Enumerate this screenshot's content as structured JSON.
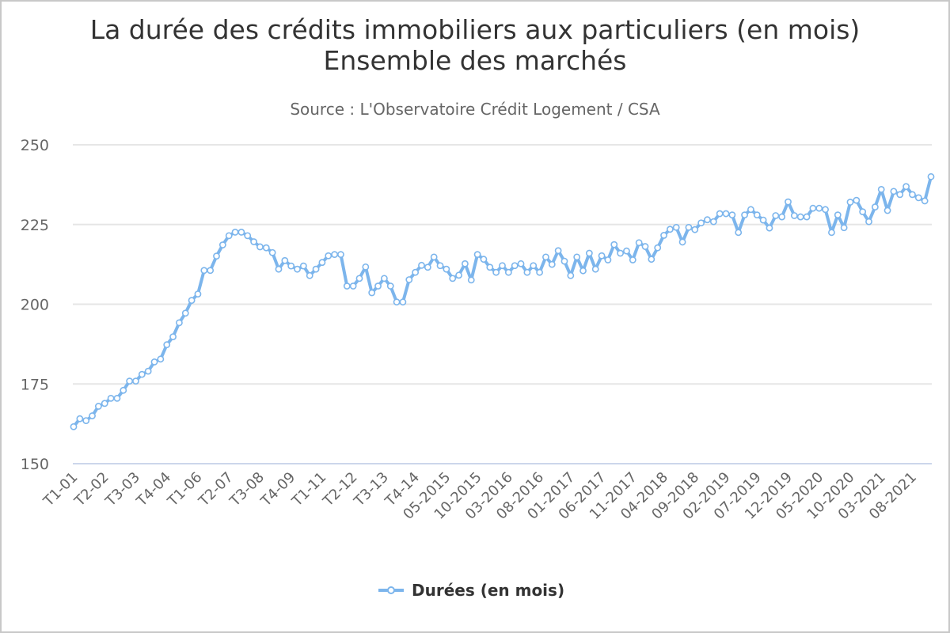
{
  "chart_data": {
    "type": "line",
    "title": "La durée des crédits immobiliers aux particuliers (en mois)",
    "title_line2": "Ensemble des marchés",
    "subtitle": "Source : L'Observatoire Crédit Logement / CSA",
    "xlabel": "",
    "ylabel": "",
    "ylim": [
      150,
      250
    ],
    "yticks": [
      150,
      175,
      200,
      225,
      250
    ],
    "grid": true,
    "legend_position": "bottom-center",
    "tick_every": 5,
    "tick_labels": [
      "T1-01",
      "T2-02",
      "T3-03",
      "T4-04",
      "T1-06",
      "T2-07",
      "T3-08",
      "T4-09",
      "T1-11",
      "T2-12",
      "T3-13",
      "T4-14",
      "05-2015",
      "10-2015",
      "03-2016",
      "08-2016",
      "01-2017",
      "06-2017",
      "11-2017",
      "04-2018",
      "09-2018",
      "02-2019",
      "07-2019",
      "12-2019",
      "05-2020",
      "10-2020",
      "03-2021",
      "08-2021"
    ],
    "series": [
      {
        "name": "Durées (en mois)",
        "color": "#7cb5ec",
        "values": [
          161.6,
          164.1,
          163.5,
          165.0,
          168.0,
          168.9,
          170.5,
          170.5,
          173.0,
          175.9,
          175.9,
          178.0,
          179.0,
          181.9,
          182.8,
          187.3,
          189.8,
          194.2,
          197.2,
          201.2,
          203.2,
          210.6,
          210.6,
          215.1,
          218.6,
          221.5,
          222.6,
          222.6,
          221.5,
          219.6,
          218.0,
          217.7,
          216.2,
          211.0,
          213.7,
          212.0,
          211.0,
          212.0,
          209.0,
          211.0,
          213.1,
          215.2,
          215.6,
          215.6,
          205.7,
          205.7,
          208.1,
          211.7,
          203.6,
          205.7,
          208.1,
          205.7,
          200.7,
          200.7,
          207.7,
          210.0,
          212.2,
          211.6,
          214.8,
          212.1,
          211.0,
          208.1,
          209.1,
          212.7,
          207.6,
          215.6,
          214.1,
          211.6,
          210.0,
          212.1,
          210.0,
          212.1,
          212.7,
          210.0,
          212.1,
          210.0,
          214.8,
          212.5,
          216.8,
          213.5,
          209.0,
          214.8,
          210.5,
          216.0,
          211.0,
          215.2,
          213.9,
          218.7,
          216.0,
          216.7,
          213.9,
          219.3,
          218.1,
          214.1,
          217.7,
          221.6,
          223.5,
          224.1,
          219.5,
          224.1,
          223.4,
          225.5,
          226.5,
          225.9,
          228.4,
          228.4,
          228.0,
          222.5,
          228.0,
          229.7,
          228.0,
          226.4,
          223.9,
          227.8,
          227.4,
          232.1,
          227.8,
          227.4,
          227.4,
          230.1,
          230.1,
          229.7,
          222.5,
          228.0,
          224.0,
          232.0,
          232.6,
          229.0,
          225.9,
          230.5,
          236.0,
          229.4,
          235.4,
          234.4,
          236.9,
          234.4,
          233.4,
          232.4,
          240.0
        ]
      }
    ]
  }
}
